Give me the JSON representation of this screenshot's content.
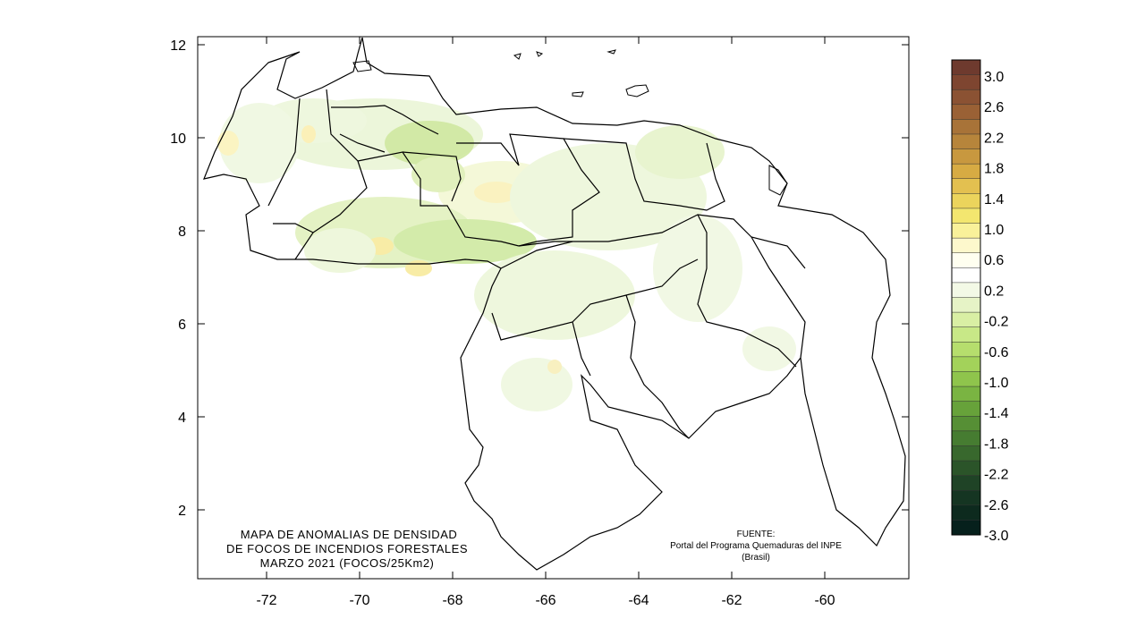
{
  "map": {
    "title_lines": [
      "MAPA DE ANOMALIAS DE DENSIDAD",
      "DE FOCOS DE INCENDIOS FORESTALES",
      "MARZO 2021 (FOCOS/25Km2)"
    ],
    "source_lines": [
      "FUENTE:",
      "Portal del Programa Quemaduras del INPE",
      "(Brasil)"
    ],
    "x_ticks": [
      "-72",
      "-70",
      "-68",
      "-66",
      "-64",
      "-62",
      "-60"
    ],
    "y_ticks": [
      "12",
      "10",
      "8",
      "6",
      "4",
      "2"
    ],
    "frame_color": "#000000",
    "boundary_color": "#000000"
  },
  "legend": {
    "labels": [
      "3.0",
      "2.6",
      "2.2",
      "1.8",
      "1.4",
      "1.0",
      "0.6",
      "0.2",
      "-0.2",
      "-0.6",
      "-1.0",
      "-1.4",
      "-1.8",
      "-2.2",
      "-2.6",
      "-3.0"
    ],
    "colors": [
      "#6e3a2e",
      "#7e4530",
      "#8b5233",
      "#9a6135",
      "#a87338",
      "#b7853b",
      "#c8983f",
      "#d7ab43",
      "#e3c050",
      "#ebd45c",
      "#f3e66f",
      "#f9f19a",
      "#fdf8cc",
      "#fffff0",
      "#ffffff",
      "#f3f9e6",
      "#e6f3c6",
      "#d9efa4",
      "#c8e887",
      "#b6de6d",
      "#a3d25a",
      "#8fc44c",
      "#7ab442",
      "#67a23a",
      "#568f35",
      "#467c31",
      "#38682d",
      "#2b5429",
      "#1f4326",
      "#153522",
      "#0d2a1e",
      "#06201c"
    ]
  }
}
